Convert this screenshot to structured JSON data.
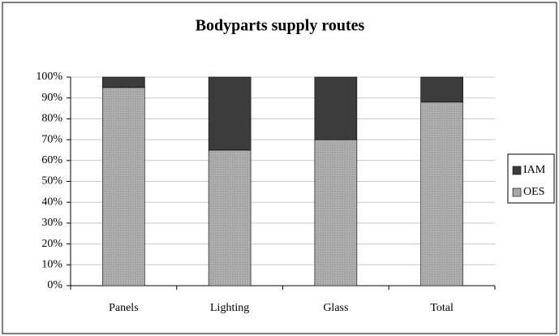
{
  "chart_data": {
    "type": "bar",
    "stacked": true,
    "title": "Bodyparts supply routes",
    "categories": [
      "Panels",
      "Lighting",
      "Glass",
      "Total"
    ],
    "series": [
      {
        "name": "OES",
        "color": "#a6a6a6",
        "values": [
          95,
          65,
          70,
          88
        ]
      },
      {
        "name": "IAM",
        "color": "#3c3c3c",
        "values": [
          5,
          35,
          30,
          12
        ]
      }
    ],
    "ylim": [
      0,
      100
    ],
    "yticks": [
      {
        "value": 0,
        "label": "0%"
      },
      {
        "value": 10,
        "label": "10%"
      },
      {
        "value": 20,
        "label": "20%"
      },
      {
        "value": 30,
        "label": "30%"
      },
      {
        "value": 40,
        "label": "40%"
      },
      {
        "value": 50,
        "label": "50%"
      },
      {
        "value": 60,
        "label": "60%"
      },
      {
        "value": 70,
        "label": "70%"
      },
      {
        "value": 80,
        "label": "80%"
      },
      {
        "value": 90,
        "label": "90%"
      },
      {
        "value": 100,
        "label": "100%"
      }
    ],
    "grid": true,
    "legend": "right"
  }
}
